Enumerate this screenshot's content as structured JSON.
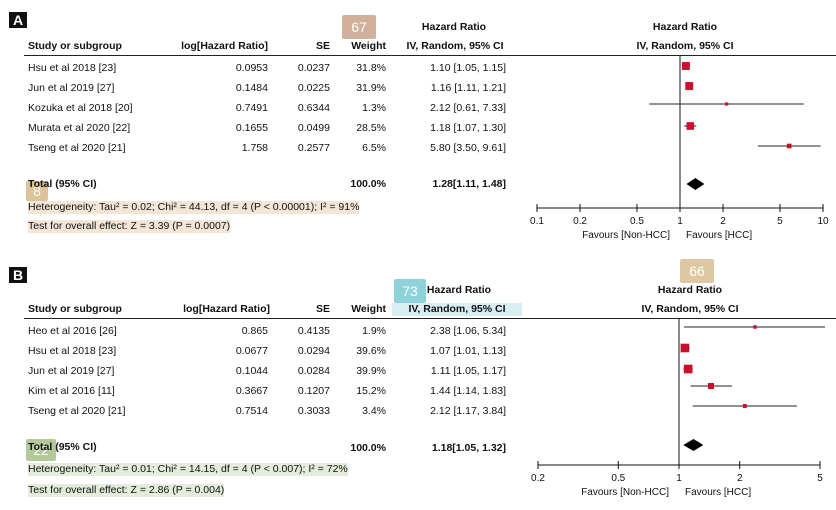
{
  "panel_a": {
    "tag": "A",
    "col_study": "Study or subgroup",
    "col_loghr": "log[Hazard Ratio]",
    "col_se": "SE",
    "col_weight": "Weight",
    "hr_title": "Hazard Ratio",
    "hr_method": "IV, Random, 95% CI",
    "plot_title": "Hazard Ratio",
    "plot_method": "IV, Random, 95% CI",
    "rows": [
      {
        "study": "Hsu et al 2018 [23]",
        "loghr": "0.0953",
        "se": "0.0237",
        "weight": "31.8%",
        "ci": "1.10 [1.05, 1.15]"
      },
      {
        "study": "Jun et al 2019 [27]",
        "loghr": "0.1484",
        "se": "0.0225",
        "weight": "31.9%",
        "ci": "1.16 [1.11, 1.21]"
      },
      {
        "study": "Kozuka et al 2018 [20]",
        "loghr": "0.7491",
        "se": "0.6344",
        "weight": "1.3%",
        "ci": "2.12 [0.61, 7.33]"
      },
      {
        "study": "Murata et al 2020 [22]",
        "loghr": "0.1655",
        "se": "0.0499",
        "weight": "28.5%",
        "ci": "1.18 [1.07, 1.30]"
      },
      {
        "study": "Tseng et al 2020 [21]",
        "loghr": "1.758",
        "se": "0.2577",
        "weight": "6.5%",
        "ci": "5.80 [3.50, 9.61]"
      }
    ],
    "total_label": "Total (95% CI)",
    "total_weight": "100.0%",
    "total_ci": "1.28[1.11, 1.48]",
    "heterogeneity": "Heterogeneity: Tau² = 0.02; Chi² = 44.13, df = 4 (P < 0.00001); I² = 91%",
    "overall": "Test for overall effect: Z = 3.39 (P = 0.0007)",
    "axis_ticks": [
      "0.1",
      "0.2",
      "0.5",
      "1",
      "2",
      "5",
      "10"
    ],
    "favours_left": "Favours [Non-HCC]",
    "favours_right": "Favours [HCC]",
    "badges": [
      {
        "text": "67",
        "color": "#c9a48a"
      },
      {
        "text": "8",
        "color": "#d6b98a"
      }
    ]
  },
  "panel_b": {
    "tag": "B",
    "col_study": "Study or subgroup",
    "col_loghr": "log[Hazard Ratio]",
    "col_se": "SE",
    "col_weight": "Weight",
    "hr_title": "Hazard Ratio",
    "hr_method": "IV, Random, 95% CI",
    "plot_title": "Hazard Ratio",
    "plot_method": "IV, Random, 95% CI",
    "rows": [
      {
        "study": "Heo et al 2016 [26]",
        "loghr": "0.865",
        "se": "0.4135",
        "weight": "1.9%",
        "ci": "2.38 [1.06, 5.34]"
      },
      {
        "study": "Hsu et al 2018 [23]",
        "loghr": "0.0677",
        "se": "0.0294",
        "weight": "39.6%",
        "ci": "1.07 [1.01, 1.13]"
      },
      {
        "study": "Jun et al 2019 [27]",
        "loghr": "0.1044",
        "se": "0.0284",
        "weight": "39.9%",
        "ci": "1.11 [1.05, 1.17]"
      },
      {
        "study": "Kim et al 2016 [11]",
        "loghr": "0.3667",
        "se": "0.1207",
        "weight": "15.2%",
        "ci": "1.44 [1.14, 1.83]"
      },
      {
        "study": "Tseng et al 2020 [21]",
        "loghr": "0.7514",
        "se": "0.3033",
        "weight": "3.4%",
        "ci": "2.12 [1.17, 3.84]"
      }
    ],
    "total_label": "Total (95% CI)",
    "total_weight": "100.0%",
    "total_ci": "1.18[1.05, 1.32]",
    "heterogeneity": "Heterogeneity: Tau² = 0.01; Chi² = 14.15, df = 4 (P < 0.007); I² = 72%",
    "overall": "Test for overall effect: Z = 2.86 (P = 0.004)",
    "axis_ticks": [
      "0.2",
      "0.5",
      "1",
      "2",
      "5"
    ],
    "favours_left": "Favours [Non-HCC]",
    "favours_right": "Favours [HCC]",
    "badges": [
      {
        "text": "73",
        "color": "#7ccbd6"
      },
      {
        "text": "66",
        "color": "#d9bf94"
      },
      {
        "text": "22",
        "color": "#a7c08a"
      }
    ]
  },
  "chart_data": [
    {
      "type": "scatter",
      "title": "Hazard Ratio",
      "xlim": [
        0.1,
        10
      ],
      "xscale": "log",
      "x_ticks": [
        0.1,
        0.2,
        0.5,
        1,
        2,
        5,
        10
      ],
      "xlabel_left": "Favours [Non-HCC]",
      "xlabel_right": "Favours [HCC]",
      "series": [
        {
          "name": "Hsu et al 2018 [23]",
          "hr": 1.1,
          "lower": 1.05,
          "upper": 1.15,
          "weight": 31.8
        },
        {
          "name": "Jun et al 2019 [27]",
          "hr": 1.16,
          "lower": 1.11,
          "upper": 1.21,
          "weight": 31.9
        },
        {
          "name": "Kozuka et al 2018 [20]",
          "hr": 2.12,
          "lower": 0.61,
          "upper": 7.33,
          "weight": 1.3
        },
        {
          "name": "Murata et al 2020 [22]",
          "hr": 1.18,
          "lower": 1.07,
          "upper": 1.3,
          "weight": 28.5
        },
        {
          "name": "Tseng et al 2020 [21]",
          "hr": 5.8,
          "lower": 3.5,
          "upper": 9.61,
          "weight": 6.5
        }
      ],
      "total": {
        "hr": 1.28,
        "lower": 1.11,
        "upper": 1.48
      }
    },
    {
      "type": "scatter",
      "title": "Hazard Ratio",
      "xlim": [
        0.2,
        5
      ],
      "xscale": "log",
      "x_ticks": [
        0.2,
        0.5,
        1,
        2,
        5
      ],
      "xlabel_left": "Favours [Non-HCC]",
      "xlabel_right": "Favours [HCC]",
      "series": [
        {
          "name": "Heo et al 2016 [26]",
          "hr": 2.38,
          "lower": 1.06,
          "upper": 5.34,
          "weight": 1.9
        },
        {
          "name": "Hsu et al 2018 [23]",
          "hr": 1.07,
          "lower": 1.01,
          "upper": 1.13,
          "weight": 39.6
        },
        {
          "name": "Jun et al 2019 [27]",
          "hr": 1.11,
          "lower": 1.05,
          "upper": 1.17,
          "weight": 39.9
        },
        {
          "name": "Kim et al 2016 [11]",
          "hr": 1.44,
          "lower": 1.14,
          "upper": 1.83,
          "weight": 15.2
        },
        {
          "name": "Tseng et al 2020 [21]",
          "hr": 2.12,
          "lower": 1.17,
          "upper": 3.84,
          "weight": 3.4
        }
      ],
      "total": {
        "hr": 1.18,
        "lower": 1.05,
        "upper": 1.32
      }
    }
  ]
}
